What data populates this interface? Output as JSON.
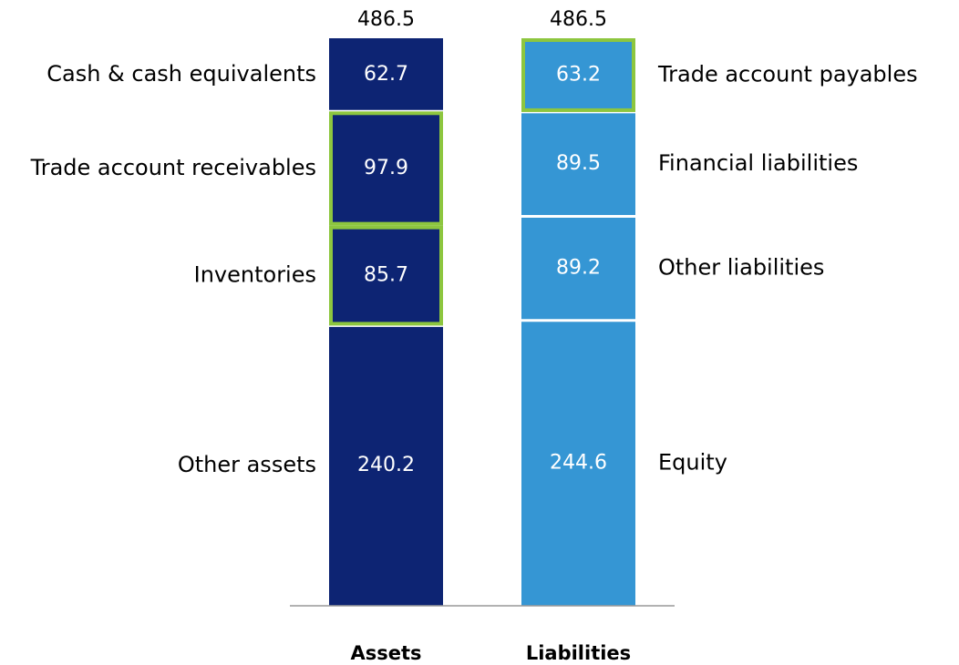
{
  "chart_data": {
    "type": "stacked_bar",
    "categories": [
      "Assets",
      "Liabilities"
    ],
    "highlight_color": "#8dc63f",
    "stacks": [
      {
        "total": 486.5,
        "color": "#0d2473",
        "label_side": "left",
        "segments": [
          {
            "name": "Cash & cash equivalents",
            "value": 62.7,
            "highlight": false
          },
          {
            "name": "Trade account receivables",
            "value": 97.9,
            "highlight": true
          },
          {
            "name": "Inventories",
            "value": 85.7,
            "highlight": true
          },
          {
            "name": "Other assets",
            "value": 240.2,
            "highlight": false
          }
        ]
      },
      {
        "total": 486.5,
        "color": "#3596d4",
        "label_side": "right",
        "segments": [
          {
            "name": "Trade account payables",
            "value": 63.2,
            "highlight": true
          },
          {
            "name": "Financial liabilities",
            "value": 89.5,
            "highlight": false
          },
          {
            "name": "Other liabilities",
            "value": 89.2,
            "highlight": false
          },
          {
            "name": "Equity",
            "value": 244.6,
            "highlight": false
          }
        ]
      }
    ]
  }
}
